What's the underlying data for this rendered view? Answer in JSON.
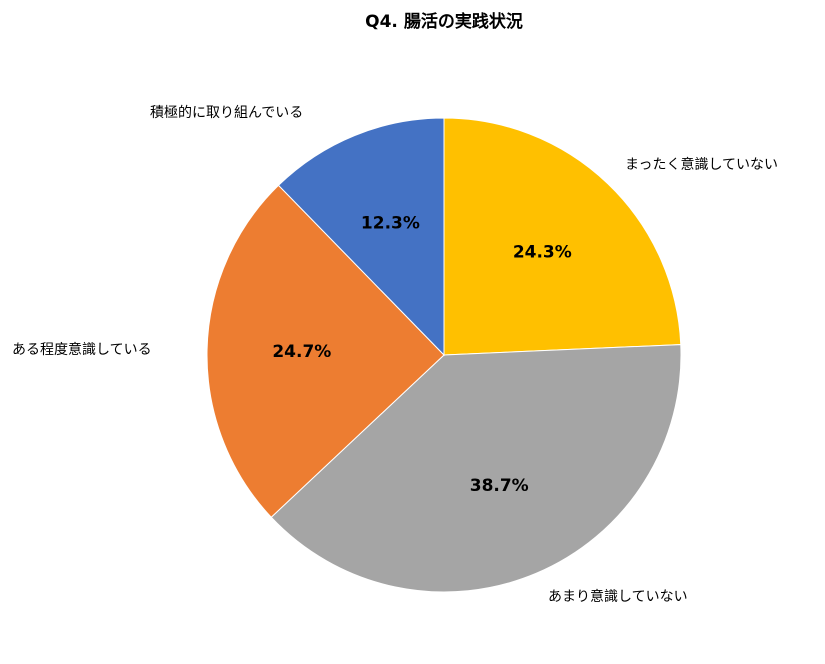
{
  "chart_data": {
    "type": "pie",
    "title": "Q4. 腸活の実践状況",
    "categories": [
      "まったく意識していない",
      "あまり意識していない",
      "ある程度意識している",
      "積極的に取り組んでいる"
    ],
    "values": [
      24.3,
      38.7,
      24.7,
      12.3
    ],
    "value_labels": [
      "24.3%",
      "38.7%",
      "24.7%",
      "12.3%"
    ],
    "colors": [
      "#ffc000",
      "#a5a5a5",
      "#ed7d31",
      "#4472c4"
    ]
  }
}
